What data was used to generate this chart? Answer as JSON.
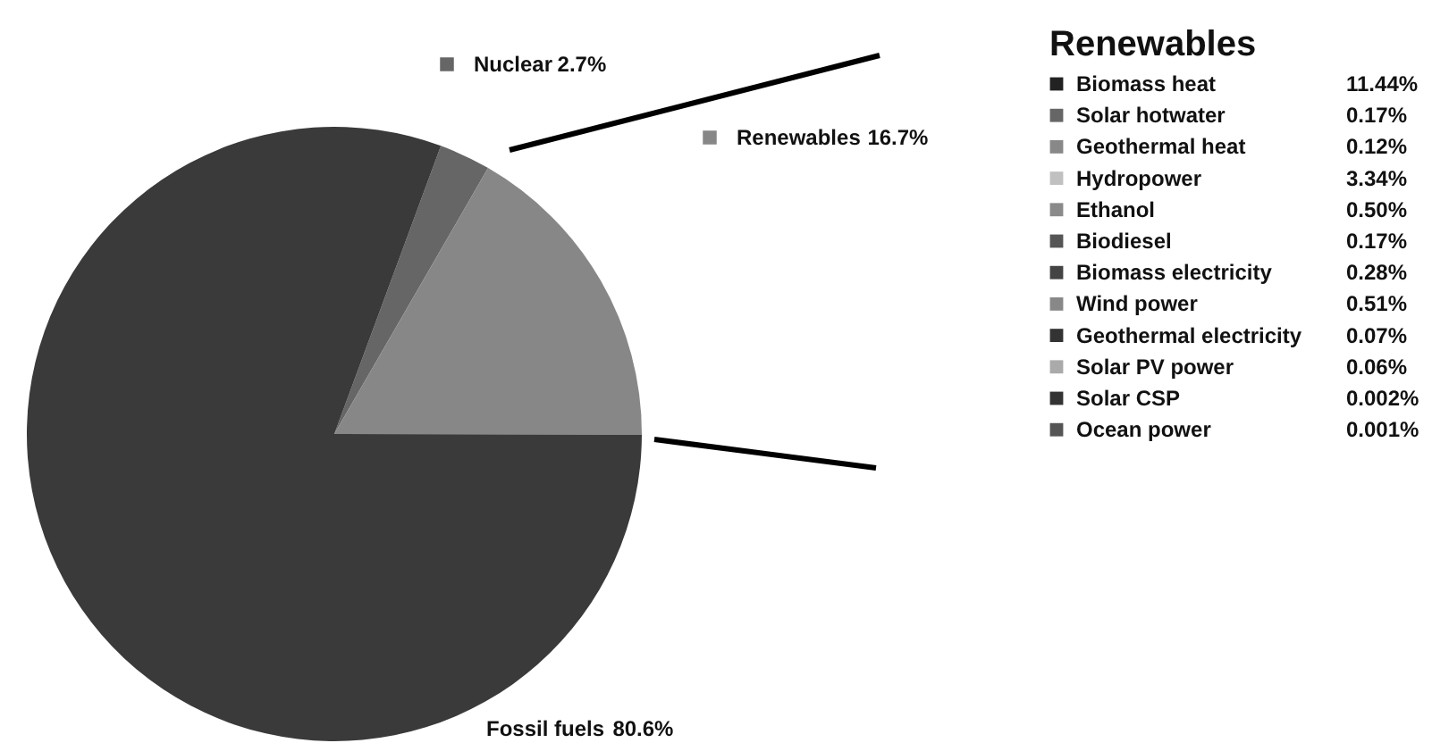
{
  "chart_data": [
    {
      "type": "pie",
      "categories": [
        "Nuclear",
        "Renewables",
        "Fossil fuels"
      ],
      "values": [
        2.7,
        16.7,
        80.6
      ],
      "colors": [
        "#666666",
        "#878787",
        "#3a3a3a"
      ],
      "value_labels": [
        "2.7%",
        "16.7%",
        "80.6%"
      ],
      "legend": "top right"
    },
    {
      "type": "other",
      "title": "Renewables",
      "categories": [
        "Biomass heat",
        "Solar hotwater",
        "Geothermal heat",
        "Hydropower",
        "Ethanol",
        "Biodiesel",
        "Biomass electricity",
        "Wind power",
        "Geothermal electricity",
        "Solar PV power",
        "Solar CSP",
        "Ocean power"
      ],
      "value_labels": [
        "11.44%",
        "0.17%",
        "0.12%",
        "3.34%",
        "0.50%",
        "0.17%",
        "0.28%",
        "0.51%",
        "0.07%",
        "0.06%",
        "0.002%",
        "0.001%"
      ],
      "colors": [
        "#222222",
        "#666666",
        "#888888",
        "#c0c0c0",
        "#8a8a8a",
        "#555555",
        "#444444",
        "#888888",
        "#333333",
        "#aaaaaa",
        "#333333",
        "#555555"
      ]
    }
  ]
}
